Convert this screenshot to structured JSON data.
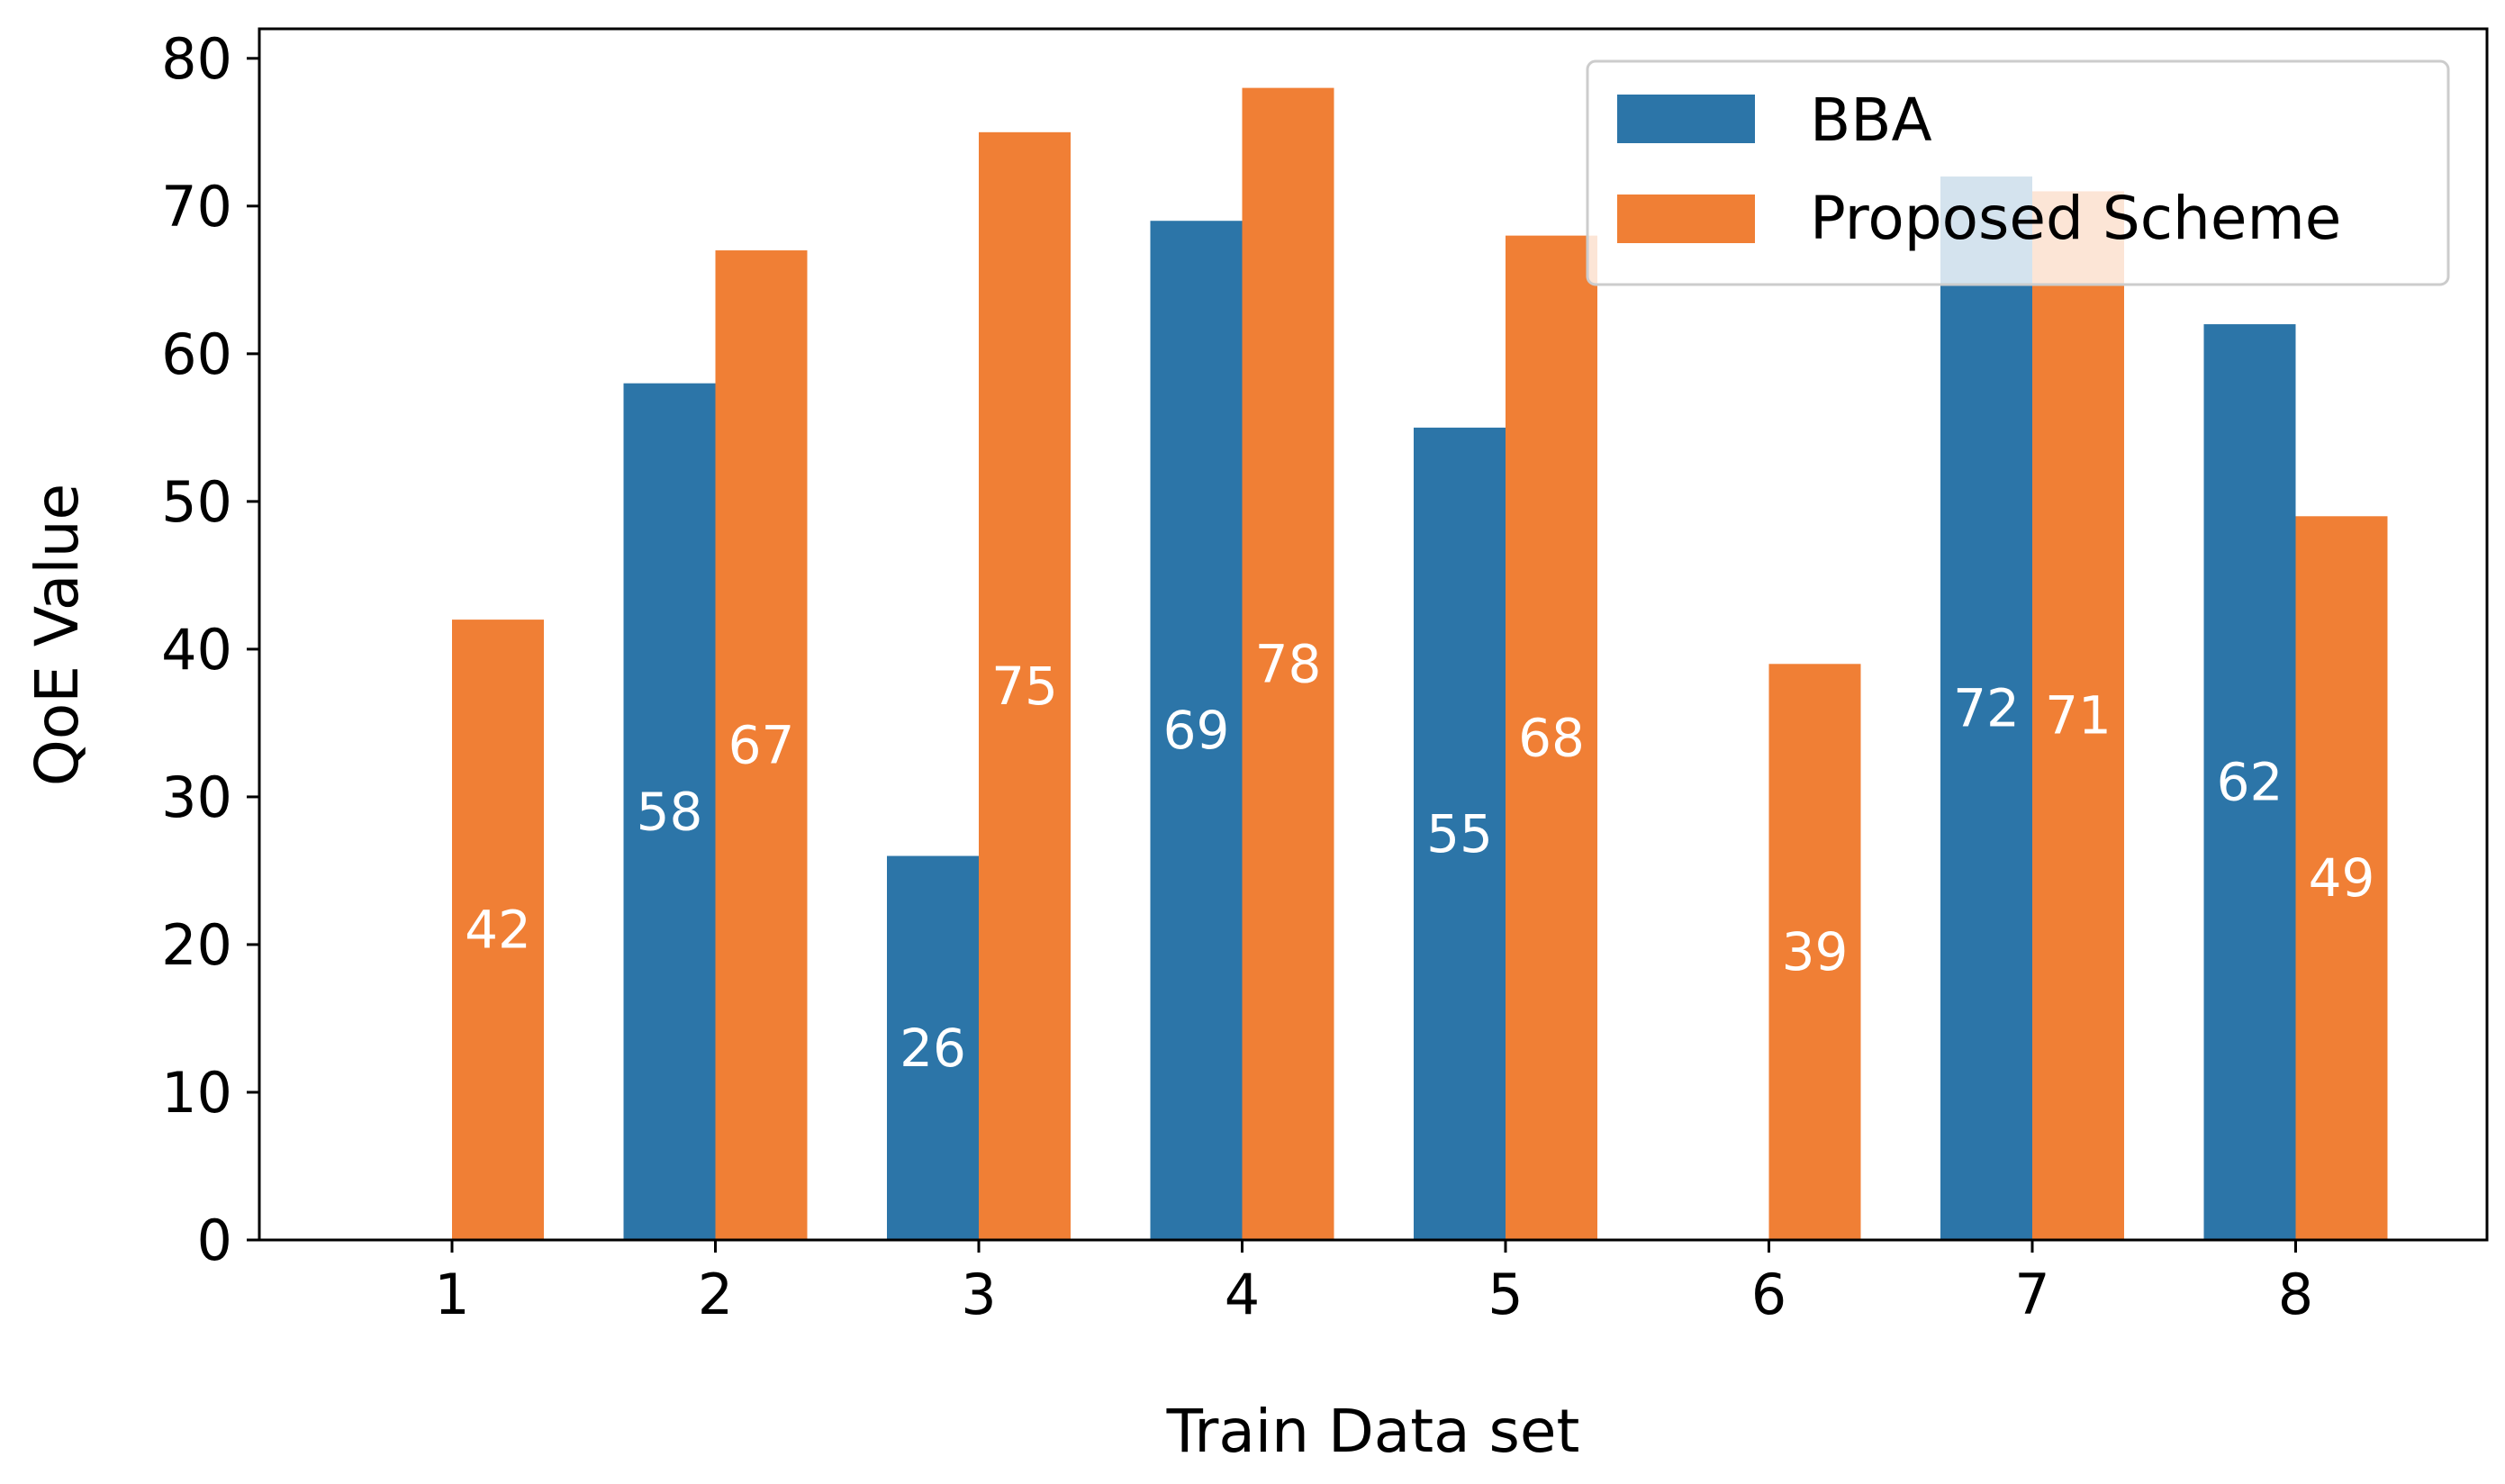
{
  "chart_data": {
    "type": "bar",
    "xlabel": "Train Data set",
    "ylabel": "QoE Value",
    "ylim": [
      0,
      82
    ],
    "yticks": [
      0,
      10,
      20,
      30,
      40,
      50,
      60,
      70,
      80
    ],
    "categories": [
      "1",
      "2",
      "3",
      "4",
      "5",
      "6",
      "7",
      "8"
    ],
    "series": [
      {
        "name": "BBA",
        "color": "#2c75a8",
        "values": [
          0,
          58,
          26,
          69,
          55,
          0,
          72,
          62
        ]
      },
      {
        "name": "Proposed Scheme",
        "color": "#f07f35",
        "values": [
          42,
          67,
          75,
          78,
          68,
          39,
          71,
          49
        ]
      }
    ],
    "legend": {
      "position": "top-right",
      "frame_color": "#cccccc"
    },
    "grid": false
  }
}
